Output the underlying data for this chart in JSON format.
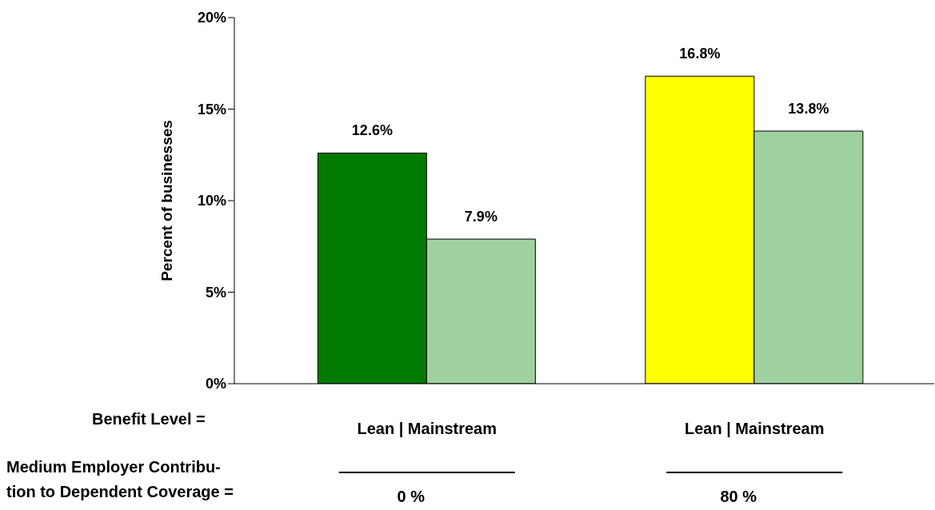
{
  "chart_data": {
    "type": "bar",
    "ylabel": "Percent of businesses",
    "categories": [
      "0 %",
      "80 %"
    ],
    "series": [
      {
        "colors": [
          "#007a00",
          "#ffff00"
        ],
        "values": [
          12.6,
          16.8
        ]
      },
      {
        "colors": [
          "#a0d0a0",
          "#a0d0a0"
        ],
        "values": [
          7.9,
          13.8
        ]
      }
    ],
    "ylim": [
      0,
      20
    ],
    "yticks": [
      {
        "value": 0,
        "label": "0%"
      },
      {
        "value": 5,
        "label": "5%"
      },
      {
        "value": 10,
        "label": "10%"
      },
      {
        "value": 15,
        "label": "15%"
      },
      {
        "value": 20,
        "label": "20%"
      }
    ],
    "value_labels": [
      [
        "12.6%",
        "16.8%"
      ],
      [
        "7.9%",
        "13.8%"
      ]
    ],
    "annotations": [
      "Lean | Mainstream",
      "Lean | Mainstream",
      "Benefit Level =",
      "Medium Employer Contribu-\ntion to Dependent Coverage ="
    ],
    "grid": false,
    "legend": false
  }
}
